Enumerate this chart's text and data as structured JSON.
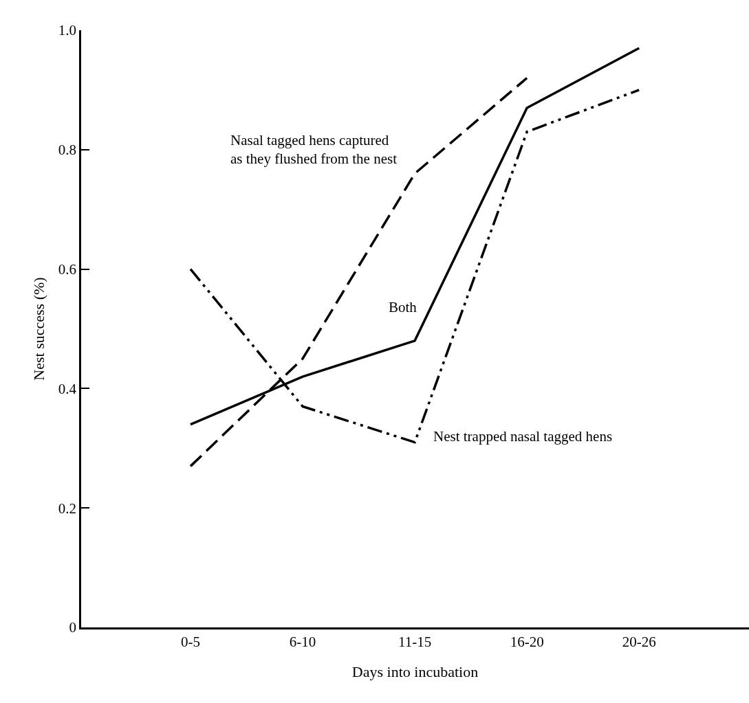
{
  "chart_data": {
    "type": "line",
    "xlabel": "Days into incubation",
    "ylabel": "Nest success (%)",
    "categories": [
      "0-5",
      "6-10",
      "11-15",
      "16-20",
      "20-26"
    ],
    "series": [
      {
        "name": "Both",
        "color": "#000000",
        "line_style": "solid",
        "values": [
          0.34,
          0.42,
          0.48,
          0.87,
          0.97
        ]
      },
      {
        "name": "Nasal tagged hens captured\nas they flushed from the nest",
        "color": "#000000",
        "line_style": "dashed",
        "values": [
          0.27,
          0.45,
          0.76,
          0.92,
          null
        ]
      },
      {
        "name": "Nest trapped nasal tagged hens",
        "color": "#000000",
        "line_style": "dashdot",
        "values": [
          0.6,
          0.37,
          0.31,
          0.83,
          0.9
        ]
      }
    ],
    "ylim": [
      0,
      1.0
    ],
    "yticks": [
      0,
      0.2,
      0.4,
      0.6,
      0.8,
      {
        "value": 1.0,
        "label": "1.0"
      }
    ],
    "legend": false,
    "marker": "none"
  }
}
